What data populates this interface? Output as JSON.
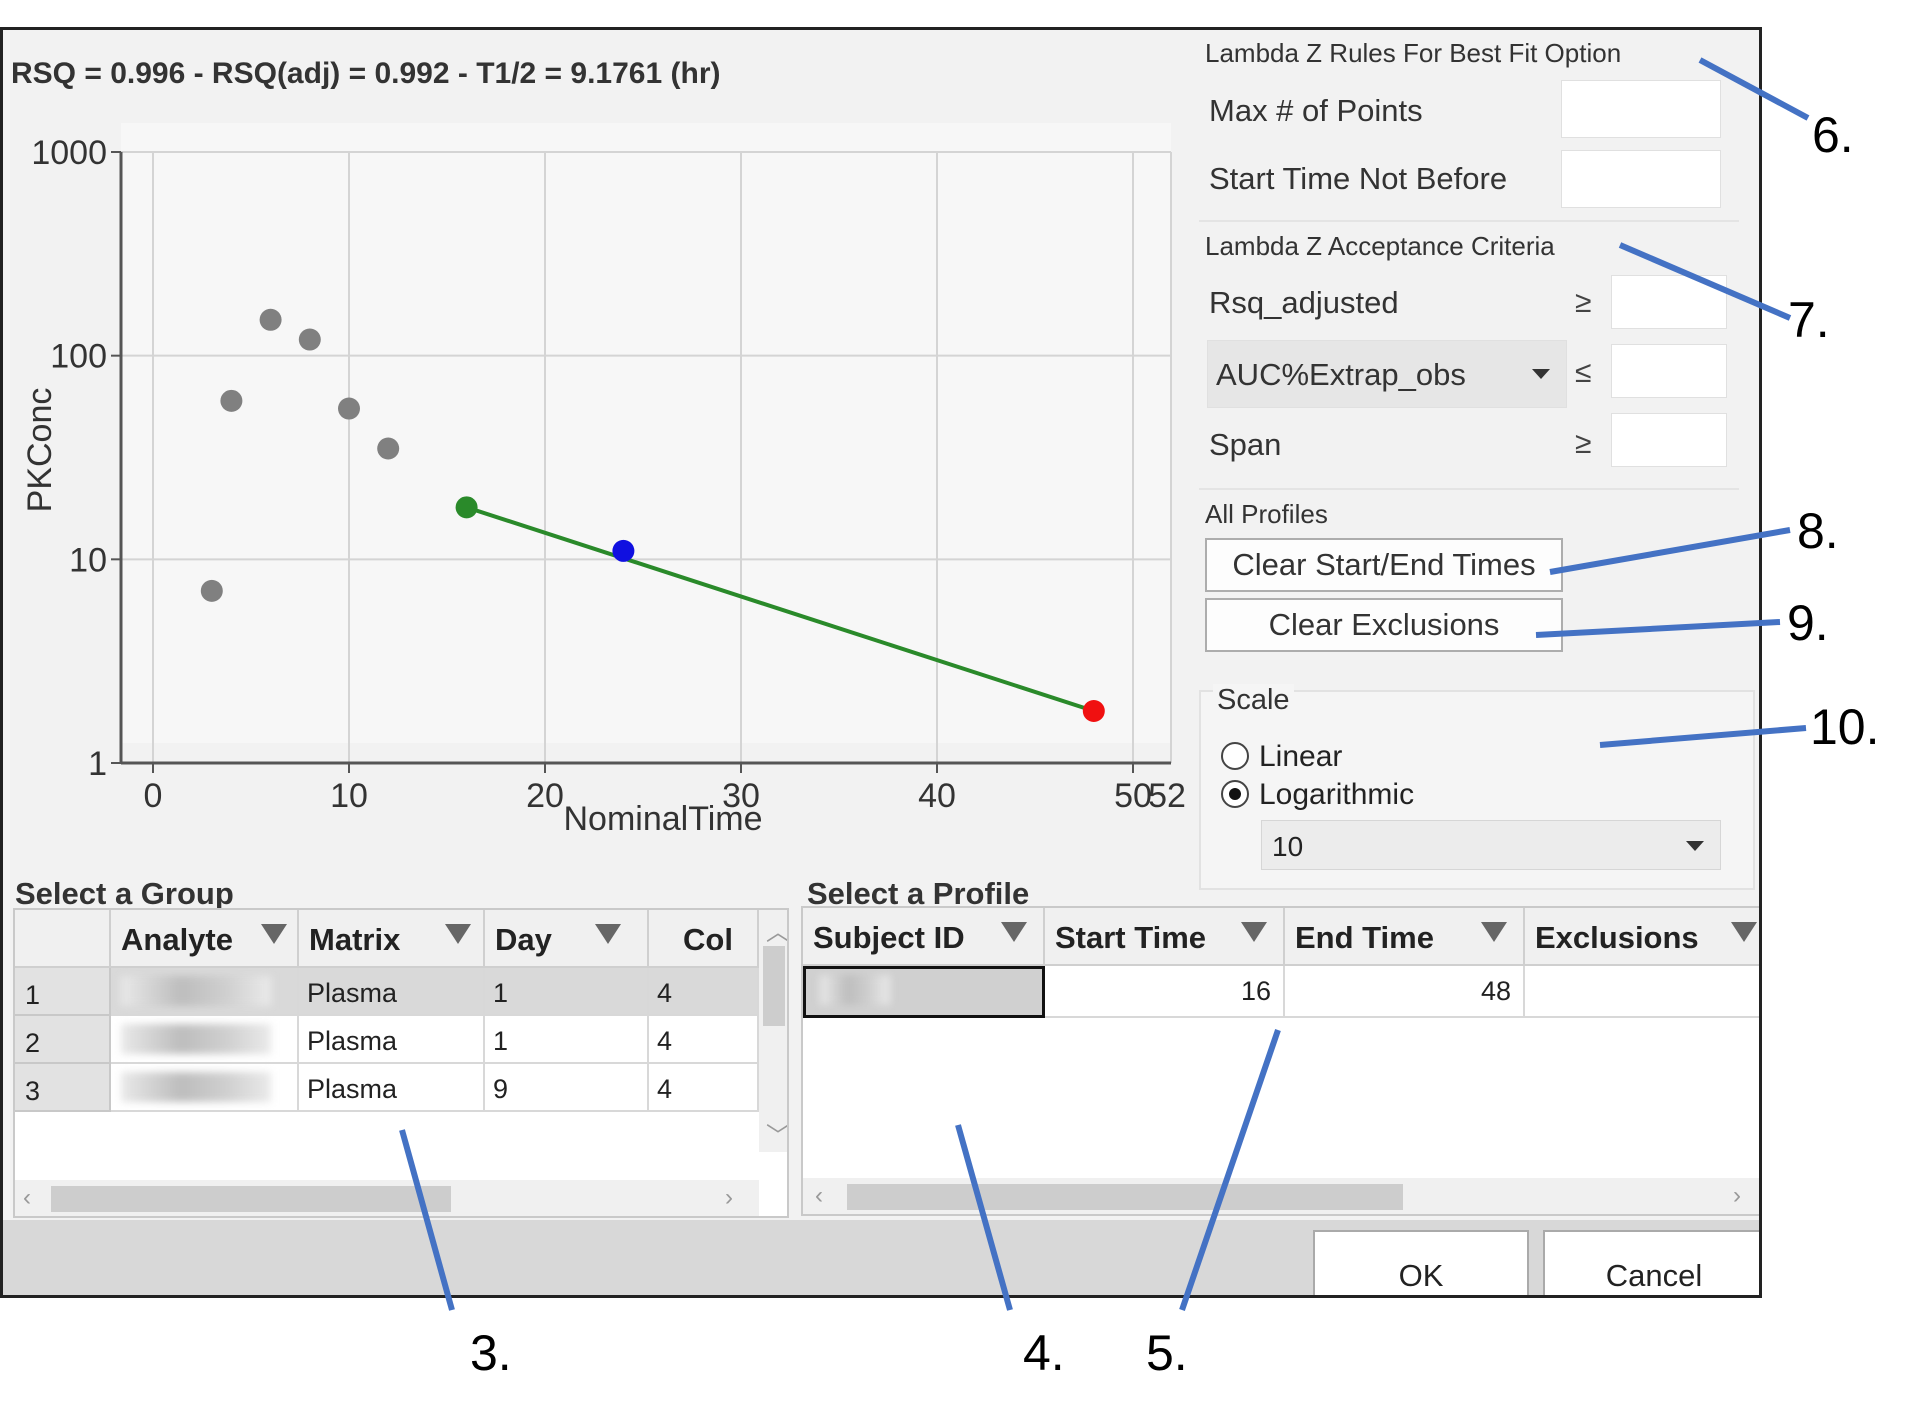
{
  "plot": {
    "title": "RSQ = 0.996 - RSQ(adj) = 0.992 - T1/2 = 9.1761 (hr)",
    "chart_data": {
      "type": "scatter",
      "xlabel": "NominalTime",
      "ylabel": "PKConc",
      "xlim": [
        -1.5,
        52
      ],
      "ylim": [
        1,
        1000
      ],
      "y_scale": "log10",
      "grid": true,
      "x_ticks": [
        "0",
        "10",
        "20",
        "30",
        "40",
        "50"
      ],
      "x_tick_extra": "52",
      "y_ticks": [
        "1000",
        "100",
        "10",
        "1"
      ],
      "series": [
        {
          "color": "#808080",
          "x": [
            3,
            4,
            6,
            8,
            10,
            12
          ],
          "y": [
            7,
            60,
            150,
            120,
            55,
            35
          ]
        },
        {
          "color": "#2a8a2a",
          "x": [
            16
          ],
          "y": [
            18
          ]
        },
        {
          "color": "#1010e0",
          "x": [
            24
          ],
          "y": [
            11
          ]
        },
        {
          "color": "#f01010",
          "x": [
            48
          ],
          "y": [
            1.8
          ]
        }
      ],
      "fit_line": {
        "color": "#2a8a2a",
        "x": [
          16,
          48
        ],
        "y": [
          18,
          1.8
        ]
      }
    }
  },
  "right_panel": {
    "rules_title": "Lambda Z Rules For Best Fit Option",
    "max_points_label": "Max # of Points",
    "start_time_label": "Start Time Not Before",
    "acceptance_title": "Lambda Z Acceptance Criteria",
    "rsq_label": "Rsq_adjusted",
    "rsq_op": "≥",
    "auc_select": "AUC%Extrap_obs",
    "auc_op": "≤",
    "span_label": "Span",
    "span_op": "≥",
    "all_profiles_title": "All Profiles",
    "clear_times_btn": "Clear Start/End Times",
    "clear_excl_btn": "Clear Exclusions",
    "scale_title": "Scale",
    "scale_linear": "Linear",
    "scale_log": "Logarithmic",
    "log_base": "10"
  },
  "group_grid": {
    "title": "Select a Group",
    "columns": [
      "Analyte",
      "Matrix",
      "Day",
      "Col"
    ],
    "rows": [
      {
        "n": "1",
        "matrix": "Plasma",
        "day": "1",
        "col": "4"
      },
      {
        "n": "2",
        "matrix": "Plasma",
        "day": "1",
        "col": "4"
      },
      {
        "n": "3",
        "matrix": "Plasma",
        "day": "9",
        "col": "4"
      }
    ]
  },
  "profile_grid": {
    "title": "Select a Profile",
    "columns": [
      "Subject ID",
      "Start Time",
      "End Time",
      "Exclusions"
    ],
    "row": {
      "start": "16",
      "end": "48",
      "exclusions": ""
    }
  },
  "footer": {
    "ok": "OK",
    "cancel": "Cancel"
  },
  "callouts": [
    "3.",
    "4.",
    "5.",
    "6.",
    "7.",
    "8.",
    "9.",
    "10."
  ],
  "colors": {
    "callout_line": "#4472c4",
    "grid_line": "#d4d4d4"
  }
}
